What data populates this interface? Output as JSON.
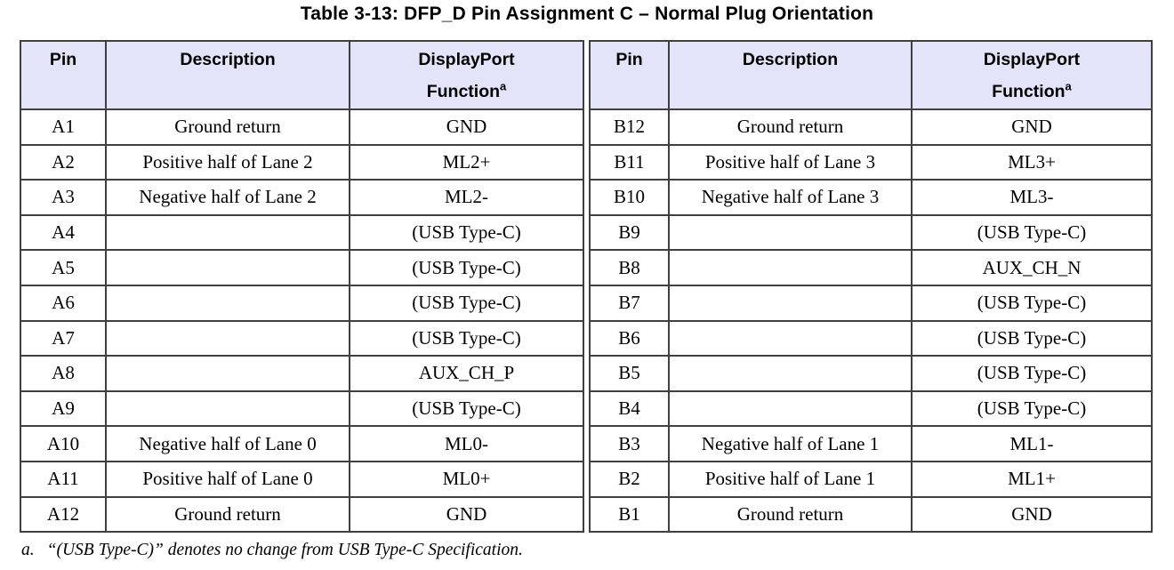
{
  "title": "Table 3-13: DFP_D Pin Assignment C – Normal Plug Orientation",
  "header": {
    "pin": "Pin",
    "description": "Description",
    "function_line1": "DisplayPort",
    "function_line2": "Function",
    "function_sup": "a"
  },
  "left_rows": [
    {
      "pin": "A1",
      "description": "Ground return",
      "function": "GND"
    },
    {
      "pin": "A2",
      "description": "Positive half of Lane 2",
      "function": "ML2+"
    },
    {
      "pin": "A3",
      "description": "Negative half of Lane 2",
      "function": "ML2-"
    },
    {
      "pin": "A4",
      "description": "",
      "function": "(USB Type-C)"
    },
    {
      "pin": "A5",
      "description": "",
      "function": "(USB Type-C)"
    },
    {
      "pin": "A6",
      "description": "",
      "function": "(USB Type-C)"
    },
    {
      "pin": "A7",
      "description": "",
      "function": "(USB Type-C)"
    },
    {
      "pin": "A8",
      "description": "",
      "function": "AUX_CH_P"
    },
    {
      "pin": "A9",
      "description": "",
      "function": "(USB Type-C)"
    },
    {
      "pin": "A10",
      "description": "Negative half of Lane 0",
      "function": "ML0-"
    },
    {
      "pin": "A11",
      "description": "Positive half of Lane 0",
      "function": "ML0+"
    },
    {
      "pin": "A12",
      "description": "Ground return",
      "function": "GND"
    }
  ],
  "right_rows": [
    {
      "pin": "B12",
      "description": "Ground return",
      "function": "GND"
    },
    {
      "pin": "B11",
      "description": "Positive half of Lane 3",
      "function": "ML3+"
    },
    {
      "pin": "B10",
      "description": "Negative half of Lane 3",
      "function": "ML3-"
    },
    {
      "pin": "B9",
      "description": "",
      "function": "(USB Type-C)"
    },
    {
      "pin": "B8",
      "description": "",
      "function": "AUX_CH_N"
    },
    {
      "pin": "B7",
      "description": "",
      "function": "(USB Type-C)"
    },
    {
      "pin": "B6",
      "description": "",
      "function": "(USB Type-C)"
    },
    {
      "pin": "B5",
      "description": "",
      "function": "(USB Type-C)"
    },
    {
      "pin": "B4",
      "description": "",
      "function": "(USB Type-C)"
    },
    {
      "pin": "B3",
      "description": "Negative half of Lane 1",
      "function": "ML1-"
    },
    {
      "pin": "B2",
      "description": "Positive half of Lane 1",
      "function": "ML1+"
    },
    {
      "pin": "B1",
      "description": "Ground return",
      "function": "GND"
    }
  ],
  "footnote": {
    "marker": "a.",
    "text": "“(USB Type-C)” denotes no change from USB Type-C Specification."
  },
  "colors": {
    "header_bg": "#e3e3f9",
    "border": "#3f3f3f"
  }
}
